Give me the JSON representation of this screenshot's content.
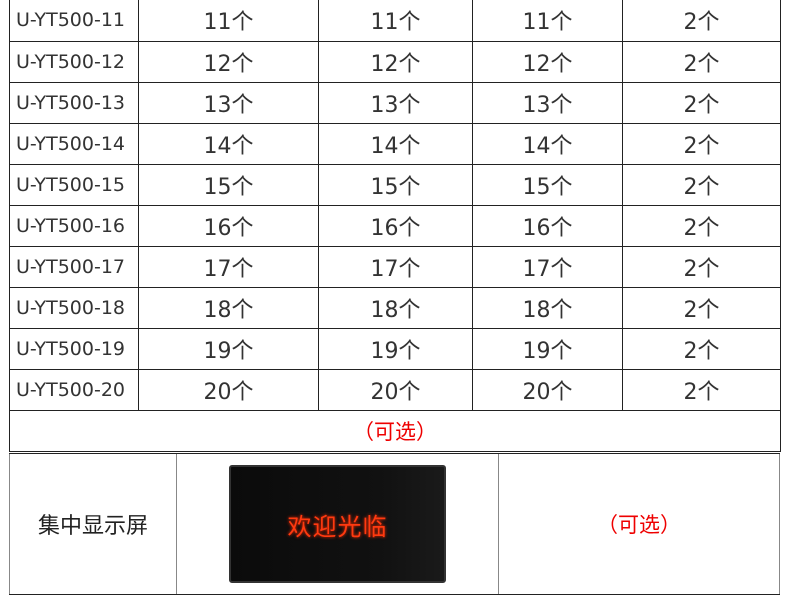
{
  "rows": [
    [
      "U-YT500-11",
      "11个",
      "11个",
      "11个",
      "2个"
    ],
    [
      "U-YT500-12",
      "12个",
      "12个",
      "12个",
      "2个"
    ],
    [
      "U-YT500-13",
      "13个",
      "13个",
      "13个",
      "2个"
    ],
    [
      "U-YT500-14",
      "14个",
      "14个",
      "14个",
      "2个"
    ],
    [
      "U-YT500-15",
      "15个",
      "15个",
      "15个",
      "2个"
    ],
    [
      "U-YT500-16",
      "16个",
      "16个",
      "16个",
      "2个"
    ],
    [
      "U-YT500-17",
      "17个",
      "17个",
      "17个",
      "2个"
    ],
    [
      "U-YT500-18",
      "18个",
      "18个",
      "18个",
      "2个"
    ],
    [
      "U-YT500-19",
      "19个",
      "19个",
      "19个",
      "2个"
    ],
    [
      "U-YT500-20",
      "20个",
      "20个",
      "20个",
      "2个"
    ]
  ],
  "optional_row": "（可选）",
  "display": {
    "label": "集中显示屏",
    "screen_text": "欢迎光临",
    "note": "（可选）"
  },
  "colors": {
    "accent_red": "#e00000",
    "led_red": "#ff3a10"
  }
}
